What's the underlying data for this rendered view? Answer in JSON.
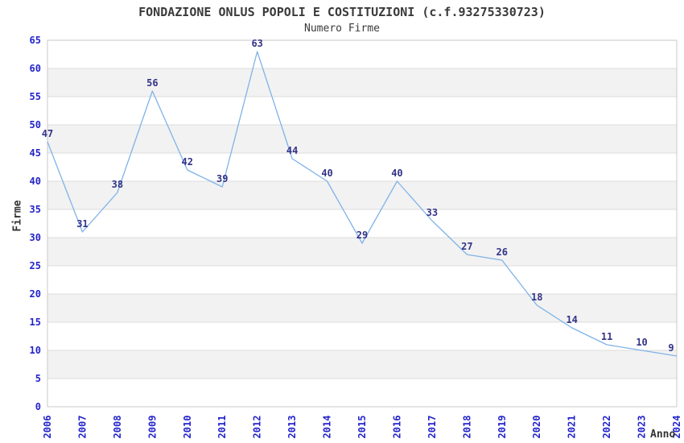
{
  "chart_data": {
    "type": "line",
    "title": "FONDAZIONE ONLUS POPOLI E COSTITUZIONI (c.f.93275330723)",
    "subtitle": "Numero Firme",
    "xlabel": "Anno",
    "ylabel": "Firme",
    "categories": [
      "2006",
      "2007",
      "2008",
      "2009",
      "2010",
      "2011",
      "2012",
      "2013",
      "2014",
      "2015",
      "2016",
      "2017",
      "2018",
      "2019",
      "2020",
      "2021",
      "2022",
      "2023",
      "2024"
    ],
    "values": [
      47,
      31,
      38,
      56,
      42,
      39,
      63,
      44,
      40,
      29,
      40,
      33,
      27,
      26,
      18,
      14,
      11,
      10,
      9
    ],
    "ylim": [
      0,
      65
    ],
    "ytick_step": 5,
    "grid": true,
    "banded_background": true,
    "legend_position": "none",
    "colors": {
      "line": "#7fb3e8",
      "data_labels": "#333388",
      "tick_labels": "#2424cc",
      "title": "#3a3a3a",
      "band": "#f2f2f2",
      "gridline": "#dcdcdc",
      "border": "#c9c9c9"
    }
  }
}
